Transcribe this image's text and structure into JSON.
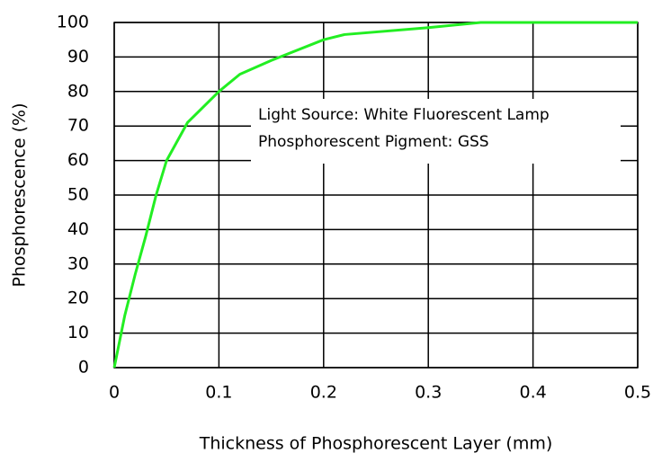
{
  "chart_data": {
    "type": "line",
    "x_label": "Thickness of Phosphorescent Layer (mm)",
    "y_label": "Phosphorescence (%)",
    "annotations": [
      "Light Source:  White Fluorescent Lamp",
      "Phosphorescent Pigment:  GSS"
    ],
    "x": [
      0,
      0.01,
      0.02,
      0.03,
      0.04,
      0.05,
      0.07,
      0.1,
      0.12,
      0.15,
      0.2,
      0.22,
      0.3,
      0.35,
      0.5
    ],
    "values": [
      0,
      15,
      27,
      38,
      50,
      60,
      71,
      80,
      85,
      89,
      95,
      96.5,
      98.5,
      100,
      100
    ],
    "color": "#22ee22",
    "xlim": [
      0,
      0.5
    ],
    "xticks": [
      0,
      0.1,
      0.2,
      0.3,
      0.4,
      0.5
    ],
    "ylim": [
      0,
      100
    ],
    "yticks": [
      0,
      10,
      20,
      30,
      40,
      50,
      60,
      70,
      80,
      90,
      100
    ],
    "grid": true
  }
}
